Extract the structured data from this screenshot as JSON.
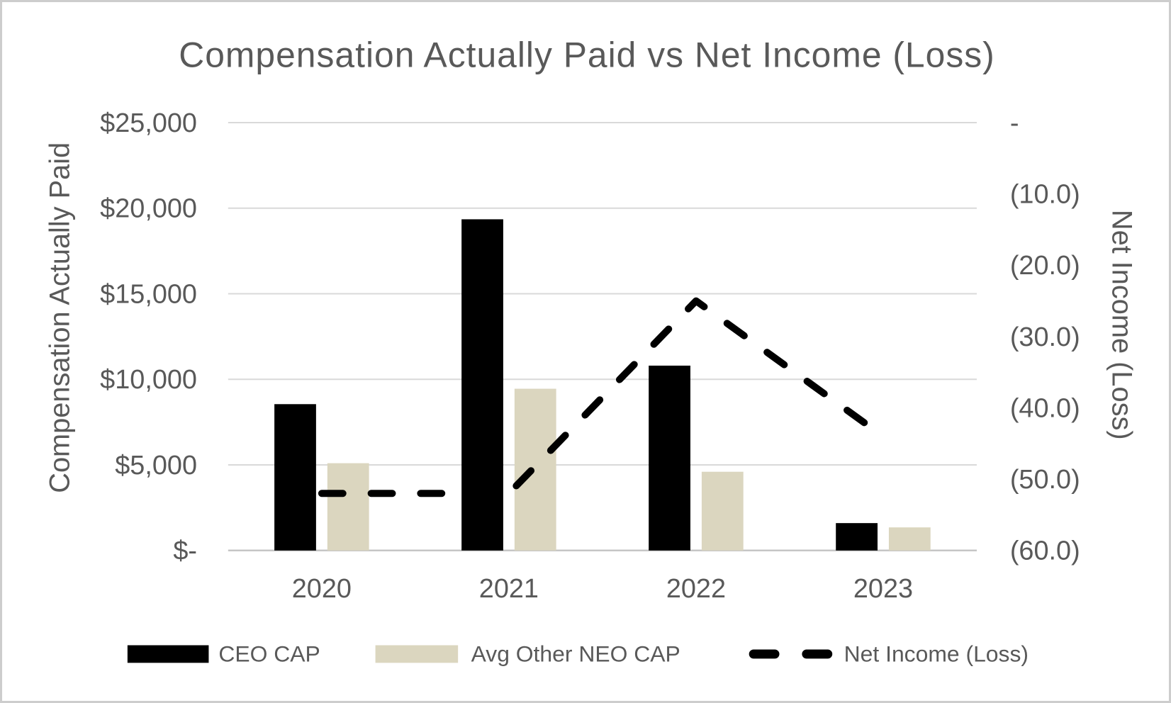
{
  "chart_data": {
    "type": "combo",
    "title": "Compensation Actually Paid vs Net Income (Loss)",
    "categories": [
      "2020",
      "2021",
      "2022",
      "2023"
    ],
    "series": [
      {
        "name": "CEO CAP",
        "type": "bar",
        "axis": "left",
        "color": "#000000",
        "values": [
          8550,
          19350,
          10800,
          1600
        ]
      },
      {
        "name": "Avg Other NEO CAP",
        "type": "bar",
        "axis": "left",
        "color": "#DBD6BF",
        "values": [
          5100,
          9450,
          4600,
          1350
        ]
      },
      {
        "name": "Net Income (Loss)",
        "type": "line",
        "axis": "right",
        "color": "#000000",
        "dashed": true,
        "values": [
          -52,
          -52,
          -25,
          -44
        ]
      }
    ],
    "left_axis": {
      "title": "Compensation Actually Paid",
      "min": 0,
      "max": 25000,
      "step": 5000,
      "tick_labels_bottom_up": [
        "$-",
        "$5,000",
        "$10,000",
        "$15,000",
        "$20,000",
        "$25,000"
      ]
    },
    "right_axis": {
      "title": "Net Income (Loss)",
      "min": -60,
      "max": 0,
      "step": 10,
      "tick_labels_bottom_up": [
        "(60.0)",
        "(50.0)",
        "(40.0)",
        "(30.0)",
        "(20.0)",
        "(10.0)",
        "-"
      ]
    },
    "legend": {
      "position": "bottom"
    },
    "grid": {
      "horizontal": true,
      "vertical": false
    },
    "colors": {
      "text": "#595959",
      "gridline": "#D9D9D9",
      "baseline": "#C6C6C6",
      "background": "#FFFFFF"
    }
  }
}
